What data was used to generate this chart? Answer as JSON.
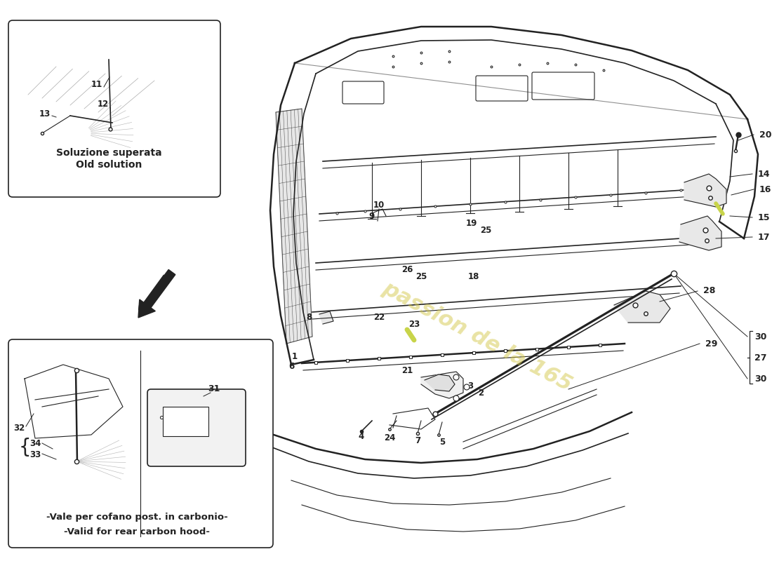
{
  "bg_color": "#ffffff",
  "line_color": "#222222",
  "watermark_color": "#d4c84a",
  "watermark_text": "passion de la 165",
  "box1_label1": "Soluzione superata",
  "box1_label2": "Old solution",
  "box2_label1": "-Vale per cofano post. in carbonio-",
  "box2_label2": "-Valid for rear carbon hood-",
  "yellow_part_color": "#c8d44a"
}
